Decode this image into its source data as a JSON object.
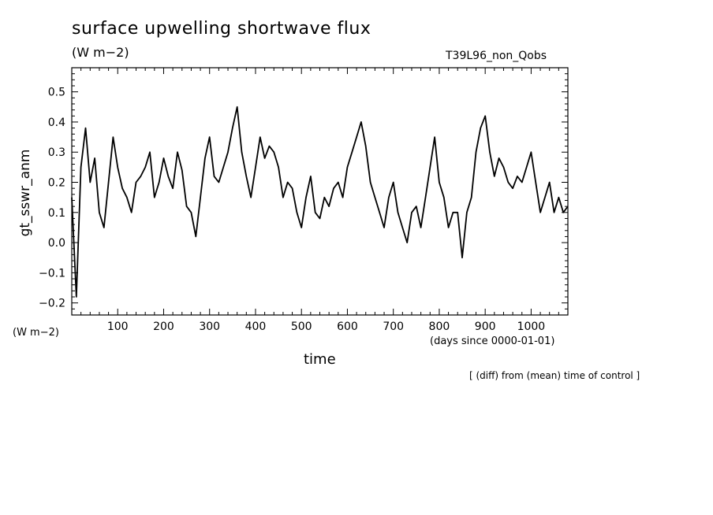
{
  "header": {
    "title": "surface upwelling shortwave flux",
    "subtitle": "(W m−2)",
    "run_name": "T39L96_non_Qobs"
  },
  "axes": {
    "ylabel": "gt_sswr_anm",
    "yunits": "(W m−2)",
    "xlabel": "time",
    "xunits": "(days since 0000-01-01)"
  },
  "note": "[ (diff) from (mean) time of control ]",
  "chart_data": {
    "type": "line",
    "xlim": [
      0,
      1080
    ],
    "ylim": [
      -0.24,
      0.58
    ],
    "xticks": [
      100,
      200,
      300,
      400,
      500,
      600,
      700,
      800,
      900,
      1000
    ],
    "yticks": [
      -0.2,
      -0.1,
      0.0,
      0.1,
      0.2,
      0.3,
      0.4,
      0.5
    ],
    "ytick_labels": [
      "−0.2",
      "−0.1",
      "0.0",
      "0.1",
      "0.2",
      "0.3",
      "0.4",
      "0.5"
    ],
    "series": [
      {
        "x": [
          0,
          10,
          20,
          30,
          40,
          50,
          60,
          70,
          80,
          90,
          100,
          110,
          120,
          130,
          140,
          150,
          160,
          170,
          180,
          190,
          200,
          210,
          220,
          230,
          240,
          250,
          260,
          270,
          280,
          290,
          300,
          310,
          320,
          330,
          340,
          350,
          360,
          370,
          380,
          390,
          400,
          410,
          420,
          430,
          440,
          450,
          460,
          470,
          480,
          490,
          500,
          510,
          520,
          530,
          540,
          550,
          560,
          570,
          580,
          590,
          600,
          610,
          620,
          630,
          640,
          650,
          660,
          670,
          680,
          690,
          700,
          710,
          720,
          730,
          740,
          750,
          760,
          770,
          780,
          790,
          800,
          810,
          820,
          830,
          840,
          850,
          860,
          870,
          880,
          890,
          900,
          910,
          920,
          930,
          940,
          950,
          960,
          970,
          980,
          990,
          1000,
          1010,
          1020,
          1030,
          1040,
          1050,
          1060,
          1070,
          1080
        ],
        "y": [
          0.15,
          -0.18,
          0.25,
          0.38,
          0.2,
          0.28,
          0.1,
          0.05,
          0.2,
          0.35,
          0.25,
          0.18,
          0.15,
          0.1,
          0.2,
          0.22,
          0.25,
          0.3,
          0.15,
          0.2,
          0.28,
          0.22,
          0.18,
          0.3,
          0.24,
          0.12,
          0.1,
          0.02,
          0.15,
          0.28,
          0.35,
          0.22,
          0.2,
          0.25,
          0.3,
          0.38,
          0.45,
          0.3,
          0.22,
          0.15,
          0.25,
          0.35,
          0.28,
          0.32,
          0.3,
          0.25,
          0.15,
          0.2,
          0.18,
          0.1,
          0.05,
          0.15,
          0.22,
          0.1,
          0.08,
          0.15,
          0.12,
          0.18,
          0.2,
          0.15,
          0.25,
          0.3,
          0.35,
          0.4,
          0.32,
          0.2,
          0.15,
          0.1,
          0.05,
          0.15,
          0.2,
          0.1,
          0.05,
          0.0,
          0.1,
          0.12,
          0.05,
          0.15,
          0.25,
          0.35,
          0.2,
          0.15,
          0.05,
          0.1,
          0.1,
          -0.05,
          0.1,
          0.15,
          0.3,
          0.38,
          0.42,
          0.3,
          0.22,
          0.28,
          0.25,
          0.2,
          0.18,
          0.22,
          0.2,
          0.25,
          0.3,
          0.2,
          0.1,
          0.15,
          0.2,
          0.1,
          0.15,
          0.1,
          0.12
        ]
      }
    ]
  }
}
